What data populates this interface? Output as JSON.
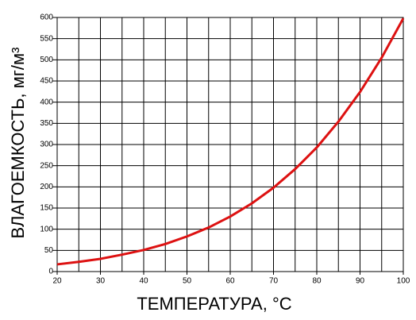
{
  "chart_data": {
    "type": "line",
    "x_label": "ТЕМПЕРАТУРА, °C",
    "y_label": "ВЛАГОЕМКОСТЬ, мг/м³",
    "x": [
      20,
      25,
      30,
      35,
      40,
      45,
      50,
      55,
      60,
      65,
      70,
      75,
      80,
      85,
      90,
      95,
      100
    ],
    "series": [
      {
        "color": "#dd1111",
        "values": [
          17,
          23,
          30,
          40,
          51,
          65,
          83,
          104,
          130,
          161,
          198,
          242,
          293,
          354,
          424,
          505,
          598
        ]
      }
    ],
    "xlim": [
      20,
      100
    ],
    "xticks": [
      20,
      30,
      40,
      50,
      60,
      70,
      80,
      90,
      100
    ],
    "x_minor_ticks": [
      25,
      35,
      45,
      55,
      65,
      75,
      85,
      95
    ],
    "ylim": [
      0,
      600
    ],
    "yticks": [
      0,
      50,
      100,
      150,
      200,
      250,
      300,
      350,
      400,
      450,
      500,
      550,
      600
    ],
    "grid": true
  }
}
